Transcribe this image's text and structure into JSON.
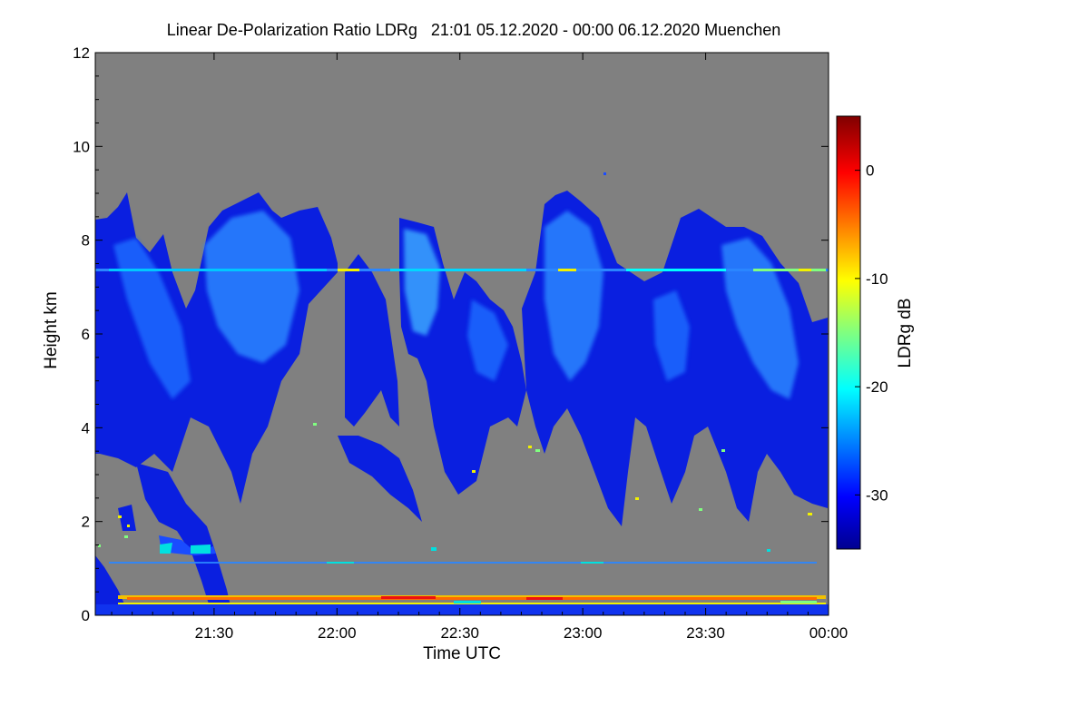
{
  "chart_data": {
    "type": "heatmap",
    "title": "Linear De-Polarization Ratio LDRg   21:01 05.12.2020 - 00:00 06.12.2020 Muenchen",
    "xlabel": "Time UTC",
    "ylabel": "Height km",
    "x_range_utc": [
      "21:01",
      "00:00"
    ],
    "x_ticks": [
      "21:30",
      "22:00",
      "22:30",
      "23:00",
      "23:30",
      "00:00"
    ],
    "x_tick_minutes": [
      29,
      59,
      89,
      119,
      149,
      179
    ],
    "ylim": [
      0,
      12
    ],
    "y_ticks": [
      0,
      2,
      4,
      6,
      8,
      10,
      12
    ],
    "background_color": "#808080",
    "colorbar": {
      "label": "LDRg dB",
      "range": [
        -35,
        5
      ],
      "ticks": [
        0,
        -10,
        -20,
        -30
      ],
      "colormap": "jet"
    },
    "features": [
      {
        "name": "cirrus layer",
        "height_km": [
          2.5,
          9.0
        ],
        "ldr_db_range": [
          -33,
          -22
        ]
      },
      {
        "name": "thin layer near 7.3 km",
        "height_km": 7.3,
        "ldr_db_range": [
          -22,
          -10
        ]
      },
      {
        "name": "layer near 1.1 km",
        "height_km": 1.1,
        "ldr_db_range": [
          -32,
          -22
        ]
      },
      {
        "name": "near-surface layer",
        "height_km": 0.25,
        "ldr_db_range": [
          -5,
          5
        ]
      }
    ]
  }
}
